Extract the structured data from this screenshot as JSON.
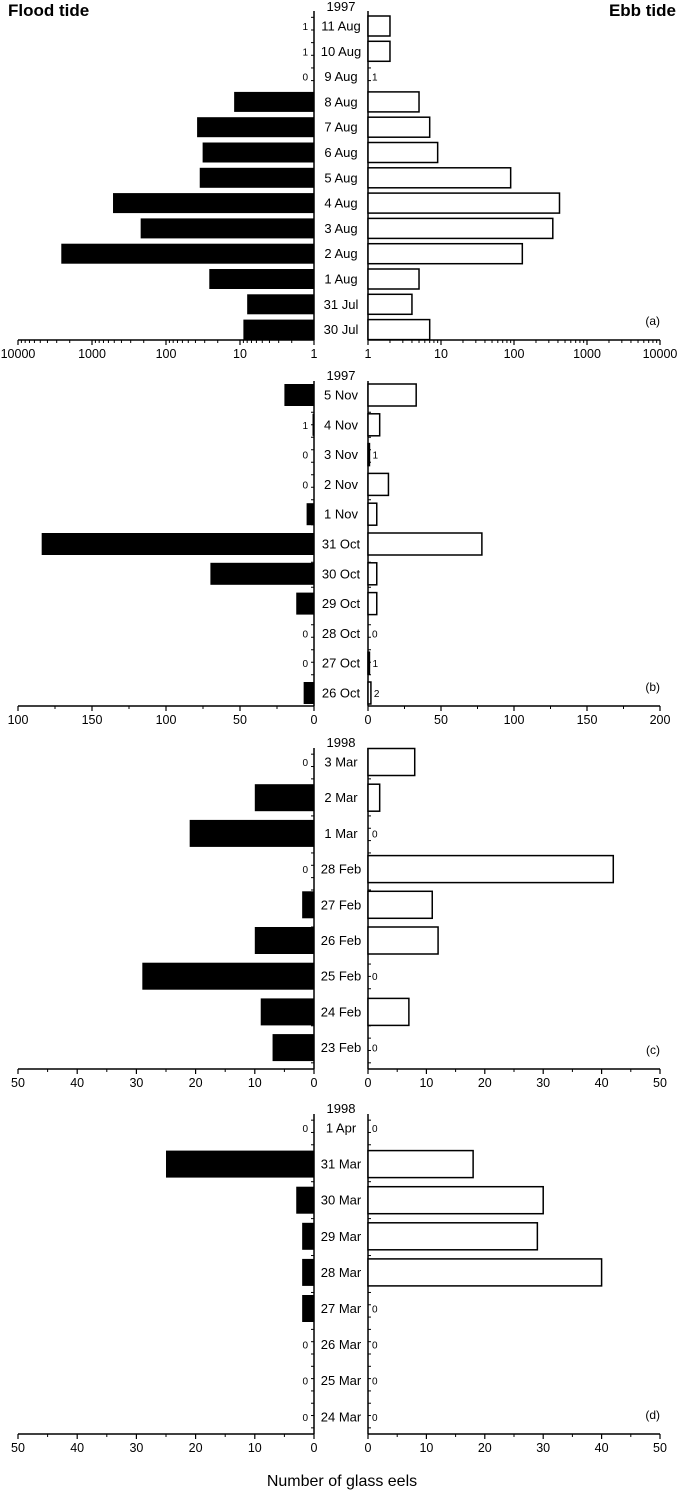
{
  "figure": {
    "left_title": "Flood tide",
    "right_title": "Ebb tide",
    "xlabel": "Number of glass eels"
  },
  "chart_data": [
    {
      "panel": "(a)",
      "type": "bar",
      "orientation": "horizontal-back-to-back",
      "year": "1997",
      "scale": "log",
      "ticks": [
        "10000",
        "1000",
        "100",
        "10",
        "1"
      ],
      "ticks_right": [
        "1",
        "10",
        "100",
        "1000",
        "10000"
      ],
      "xlim": [
        1,
        10000
      ],
      "categories": [
        "11 Aug",
        "10 Aug",
        "9 Aug",
        "8 Aug",
        "7 Aug",
        "6 Aug",
        "5 Aug",
        "4 Aug",
        "3 Aug",
        "2 Aug",
        "1 Aug",
        "31 Jul",
        "30 Jul"
      ],
      "series": [
        {
          "name": "Flood tide",
          "values": [
            1,
            1,
            0,
            12,
            38,
            32,
            35,
            520,
            220,
            2600,
            26,
            8,
            9
          ],
          "labels": [
            "1",
            "1",
            "0",
            "",
            "",
            "",
            "",
            "",
            "",
            "",
            "",
            "",
            ""
          ]
        },
        {
          "name": "Ebb tide",
          "values": [
            2,
            2,
            1,
            5,
            7,
            9,
            90,
            420,
            340,
            130,
            5,
            4,
            7
          ],
          "labels": [
            "",
            "",
            "1",
            "",
            "",
            "",
            "",
            "",
            "",
            "",
            "",
            "",
            ""
          ]
        }
      ]
    },
    {
      "panel": "(b)",
      "type": "bar",
      "orientation": "horizontal-back-to-back",
      "year": "1997",
      "scale": "linear",
      "ticks": [
        "100",
        "150",
        "100",
        "50",
        "0"
      ],
      "ticks_right": [
        "0",
        "50",
        "100",
        "150",
        "200"
      ],
      "xlim": [
        0,
        200
      ],
      "categories": [
        "5 Nov",
        "4 Nov",
        "3 Nov",
        "2 Nov",
        "1 Nov",
        "31 Oct",
        "30 Oct",
        "29 Oct",
        "28 Oct",
        "27 Oct",
        "26 Oct"
      ],
      "series": [
        {
          "name": "Flood tide",
          "values": [
            20,
            1,
            0,
            0,
            5,
            184,
            70,
            12,
            0,
            0,
            7
          ],
          "labels": [
            "",
            "1",
            "0",
            "0",
            "",
            "",
            "",
            "",
            "0",
            "0",
            ""
          ]
        },
        {
          "name": "Ebb tide",
          "values": [
            33,
            8,
            1,
            14,
            6,
            78,
            6,
            6,
            0,
            1,
            2
          ],
          "labels": [
            "",
            "",
            "1",
            "",
            "",
            "",
            "",
            "",
            "0",
            "1",
            "2"
          ]
        }
      ]
    },
    {
      "panel": "(c)",
      "type": "bar",
      "orientation": "horizontal-back-to-back",
      "year": "1998",
      "scale": "linear",
      "ticks": [
        "50",
        "40",
        "30",
        "20",
        "10",
        "0"
      ],
      "ticks_right": [
        "0",
        "10",
        "20",
        "30",
        "40",
        "50"
      ],
      "xlim": [
        0,
        50
      ],
      "categories": [
        "3 Mar",
        "2 Mar",
        "1 Mar",
        "28 Feb",
        "27 Feb",
        "26 Feb",
        "25 Feb",
        "24 Feb",
        "23 Feb"
      ],
      "series": [
        {
          "name": "Flood tide",
          "values": [
            0,
            10,
            21,
            0,
            2,
            10,
            29,
            9,
            7
          ],
          "labels": [
            "0",
            "",
            "",
            "0",
            "",
            "",
            "",
            "",
            ""
          ]
        },
        {
          "name": "Ebb tide",
          "values": [
            8,
            2,
            0,
            42,
            11,
            12,
            0,
            7,
            0
          ],
          "labels": [
            "",
            "",
            "0",
            "",
            "",
            "",
            "0",
            "",
            "0"
          ]
        }
      ]
    },
    {
      "panel": "(d)",
      "type": "bar",
      "orientation": "horizontal-back-to-back",
      "year": "1998",
      "scale": "linear",
      "ticks": [
        "50",
        "40",
        "30",
        "20",
        "10",
        "0"
      ],
      "ticks_right": [
        "0",
        "10",
        "20",
        "30",
        "40",
        "50"
      ],
      "xlim": [
        0,
        50
      ],
      "categories": [
        "1 Apr",
        "31 Mar",
        "30 Mar",
        "29 Mar",
        "28 Mar",
        "27 Mar",
        "26 Mar",
        "25 Mar",
        "24 Mar"
      ],
      "series": [
        {
          "name": "Flood tide",
          "values": [
            0,
            25,
            3,
            2,
            2,
            2,
            0,
            0,
            0
          ],
          "labels": [
            "0",
            "",
            "",
            "",
            "",
            "",
            "0",
            "0",
            "0"
          ]
        },
        {
          "name": "Ebb tide",
          "values": [
            0,
            18,
            30,
            29,
            40,
            0,
            0,
            0,
            0
          ],
          "labels": [
            "0",
            "",
            "",
            "",
            "",
            "0",
            "0",
            "0",
            "0"
          ]
        }
      ]
    }
  ]
}
